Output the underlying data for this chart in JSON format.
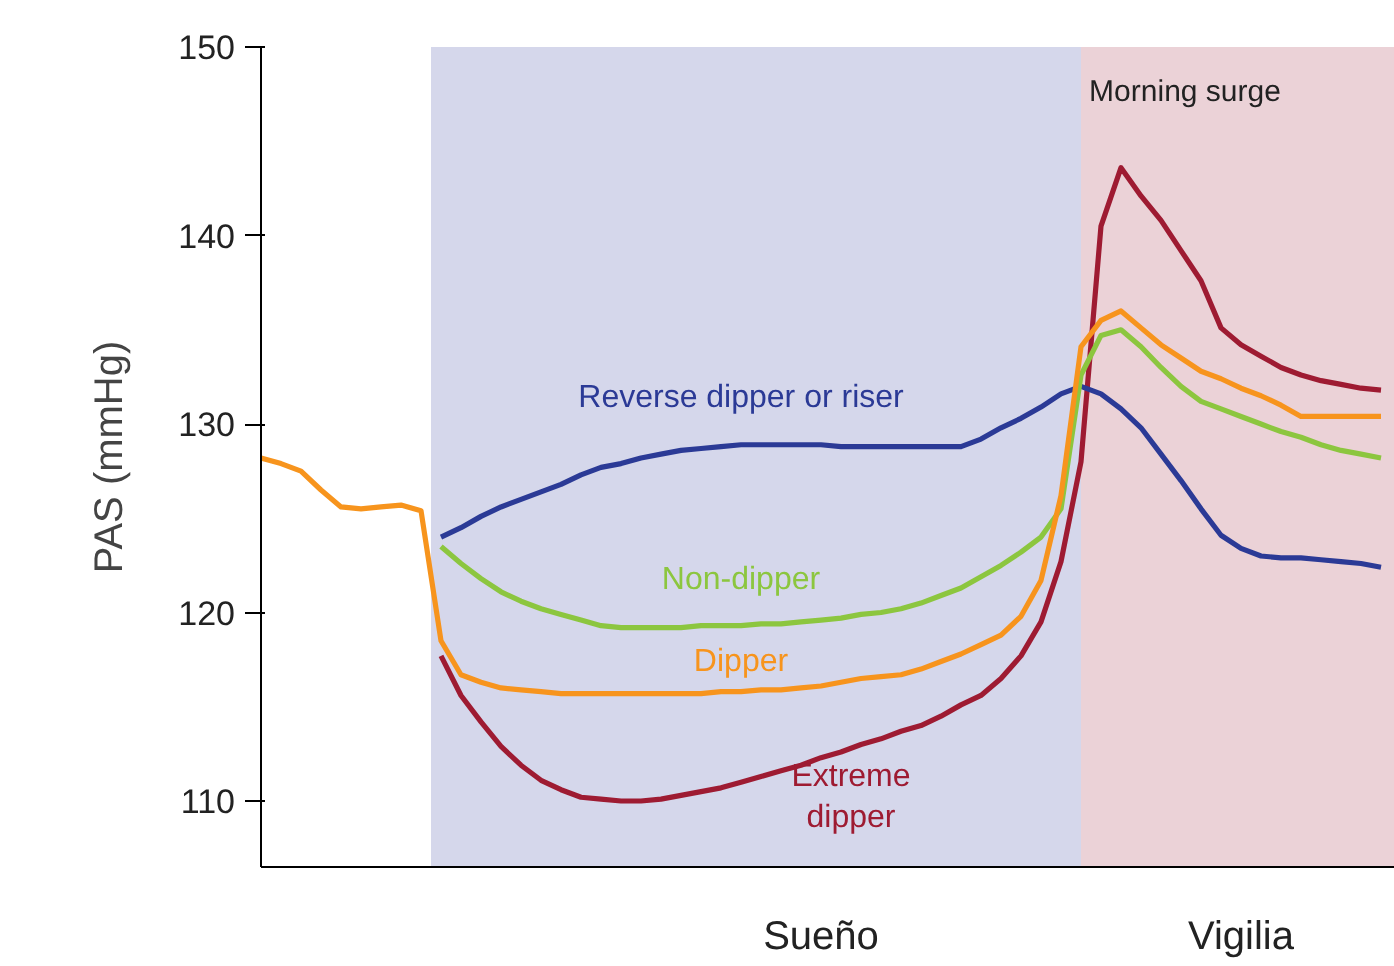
{
  "chart_data": {
    "type": "line",
    "ylabel": "PAS (mmHg)",
    "categories": [
      null,
      null,
      null,
      null,
      null,
      null,
      null,
      null,
      null,
      null,
      null,
      null,
      null,
      null,
      null,
      null,
      null,
      null,
      null,
      null,
      null,
      null,
      null,
      null,
      null,
      null,
      null,
      null,
      "Sueño",
      null,
      null,
      null,
      null,
      null,
      null,
      null,
      null,
      null,
      null,
      null,
      null,
      null,
      null,
      null,
      null,
      null,
      null,
      null,
      null,
      "Vigilia",
      null,
      null,
      null,
      null,
      null,
      null,
      null
    ],
    "ylim": [
      106.5,
      150
    ],
    "yticks": [
      110,
      120,
      130,
      140,
      150
    ],
    "grid": false,
    "marker": "none",
    "line_style": "solid",
    "series": [
      {
        "name": "Reverse dipper or riser",
        "color": "#2b3a96",
        "values": [
          null,
          null,
          null,
          null,
          null,
          null,
          null,
          null,
          null,
          124.0,
          124.5,
          125.1,
          125.6,
          126.0,
          126.4,
          126.8,
          127.3,
          127.7,
          127.9,
          128.2,
          128.4,
          128.6,
          128.7,
          128.8,
          128.9,
          128.9,
          128.9,
          128.9,
          128.9,
          128.8,
          128.8,
          128.8,
          128.8,
          128.8,
          128.8,
          128.8,
          129.2,
          129.8,
          130.3,
          130.9,
          131.6,
          132.0,
          131.6,
          130.8,
          129.8,
          128.4,
          127.0,
          125.5,
          124.1,
          123.4,
          123.0,
          122.9,
          122.9,
          122.8,
          122.7,
          122.6,
          122.4
        ]
      },
      {
        "name": "Non-dipper",
        "color": "#8cc63f",
        "values": [
          null,
          null,
          null,
          null,
          null,
          null,
          null,
          null,
          null,
          123.5,
          122.6,
          121.8,
          121.1,
          120.6,
          120.2,
          119.9,
          119.6,
          119.3,
          119.2,
          119.2,
          119.2,
          119.2,
          119.3,
          119.3,
          119.3,
          119.4,
          119.4,
          119.5,
          119.6,
          119.7,
          119.9,
          120.0,
          120.2,
          120.5,
          120.9,
          121.3,
          121.9,
          122.5,
          123.2,
          124.0,
          125.5,
          132.6,
          134.7,
          135.0,
          134.1,
          133.0,
          132.0,
          131.2,
          130.8,
          130.4,
          130.0,
          129.6,
          129.3,
          128.9,
          128.6,
          128.4,
          128.2
        ]
      },
      {
        "name": "Dipper",
        "color": "#f7941d",
        "values": [
          128.2,
          127.9,
          127.5,
          126.5,
          125.6,
          125.5,
          125.6,
          125.7,
          125.4,
          118.5,
          116.7,
          116.3,
          116.0,
          115.9,
          115.8,
          115.7,
          115.7,
          115.7,
          115.7,
          115.7,
          115.7,
          115.7,
          115.7,
          115.8,
          115.8,
          115.9,
          115.9,
          116.0,
          116.1,
          116.3,
          116.5,
          116.6,
          116.7,
          117.0,
          117.4,
          117.8,
          118.3,
          118.8,
          119.8,
          121.7,
          126.2,
          134.1,
          135.5,
          136.0,
          135.1,
          134.2,
          133.5,
          132.8,
          132.4,
          131.9,
          131.5,
          131.0,
          130.4,
          130.4,
          130.4,
          130.4,
          130.4
        ]
      },
      {
        "name": "Extreme dipper",
        "color": "#9e1b32",
        "values": [
          null,
          null,
          null,
          null,
          null,
          null,
          null,
          null,
          null,
          117.7,
          115.6,
          114.2,
          112.9,
          111.9,
          111.1,
          110.6,
          110.2,
          110.1,
          110.0,
          110.0,
          110.1,
          110.3,
          110.5,
          110.7,
          111.0,
          111.3,
          111.6,
          111.9,
          112.3,
          112.6,
          113.0,
          113.3,
          113.7,
          114.0,
          114.5,
          115.1,
          115.6,
          116.5,
          117.7,
          119.5,
          122.7,
          128.0,
          140.5,
          143.6,
          142.1,
          140.8,
          139.2,
          137.6,
          135.1,
          134.2,
          133.6,
          133.0,
          132.6,
          132.3,
          132.1,
          131.9,
          131.8
        ]
      }
    ],
    "annotations": [
      "Morning surge"
    ]
  }
}
